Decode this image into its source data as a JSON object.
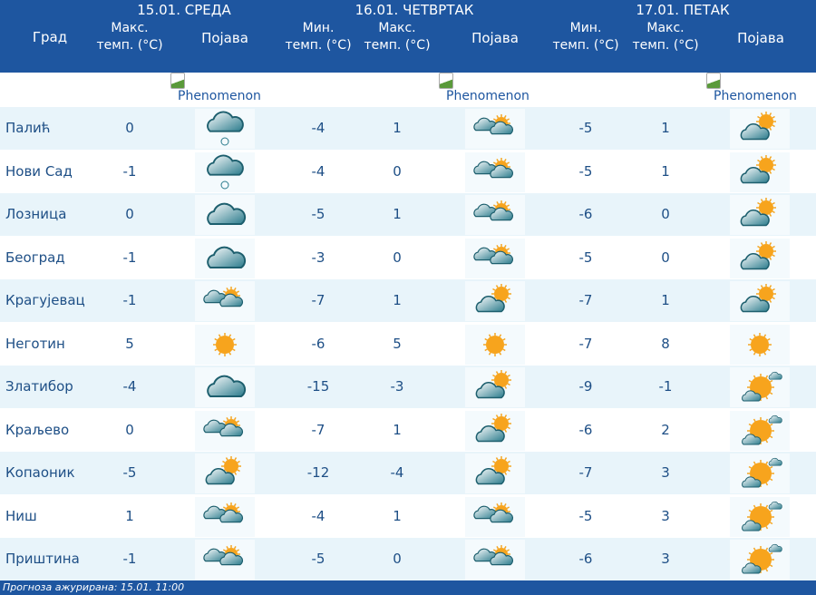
{
  "header": {
    "city_label": "Град",
    "days": [
      {
        "title": "15.01. СРЕДА",
        "cols": [
          "Макс. темп. (°C)",
          "Појава"
        ]
      },
      {
        "title": "16.01. ЧЕТВРТАК",
        "cols": [
          "Мин. темп. (°C)",
          "Макс. темп. (°C)",
          "Појава"
        ]
      },
      {
        "title": "17.01. ПЕТАК",
        "cols": [
          "Мин. темп. (°C)",
          "Макс. темп. (°C)",
          "Појава"
        ]
      }
    ]
  },
  "phenomenon_alt": "Phenomenon",
  "rows": [
    {
      "city": "Палић",
      "d1": [
        "0",
        "cloud-snow-icon"
      ],
      "d2": [
        "-4",
        "1",
        "clouds-sun-icon"
      ],
      "d3": [
        "-5",
        "1",
        "sun-cloud-icon"
      ]
    },
    {
      "city": "Нови Сад",
      "d1": [
        "-1",
        "cloud-snow-icon"
      ],
      "d2": [
        "-4",
        "0",
        "clouds-sun-icon"
      ],
      "d3": [
        "-5",
        "1",
        "sun-cloud-icon"
      ]
    },
    {
      "city": "Лозница",
      "d1": [
        "0",
        "cloud-icon"
      ],
      "d2": [
        "-5",
        "1",
        "clouds-sun-icon"
      ],
      "d3": [
        "-6",
        "0",
        "sun-cloud-icon"
      ]
    },
    {
      "city": "Београд",
      "d1": [
        "-1",
        "cloud-icon"
      ],
      "d2": [
        "-3",
        "0",
        "clouds-sun-icon"
      ],
      "d3": [
        "-5",
        "0",
        "sun-cloud-icon"
      ]
    },
    {
      "city": "Крагујевац",
      "d1": [
        "-1",
        "clouds-sun-icon"
      ],
      "d2": [
        "-7",
        "1",
        "sun-cloud-icon"
      ],
      "d3": [
        "-7",
        "1",
        "sun-cloud-icon"
      ]
    },
    {
      "city": "Неготин",
      "d1": [
        "5",
        "sun-icon"
      ],
      "d2": [
        "-6",
        "5",
        "sun-icon"
      ],
      "d3": [
        "-7",
        "8",
        "sun-icon"
      ]
    },
    {
      "city": "Златибор",
      "d1": [
        "-4",
        "cloud-icon"
      ],
      "d2": [
        "-15",
        "-3",
        "sun-cloud-icon"
      ],
      "d3": [
        "-9",
        "-1",
        "sun-big-cloud-icon"
      ]
    },
    {
      "city": "Краљево",
      "d1": [
        "0",
        "clouds-sun-icon"
      ],
      "d2": [
        "-7",
        "1",
        "sun-cloud-icon"
      ],
      "d3": [
        "-6",
        "2",
        "sun-big-cloud-icon"
      ]
    },
    {
      "city": "Копаоник",
      "d1": [
        "-5",
        "sun-cloud-icon"
      ],
      "d2": [
        "-12",
        "-4",
        "sun-cloud-icon"
      ],
      "d3": [
        "-7",
        "3",
        "sun-big-cloud-icon"
      ]
    },
    {
      "city": "Ниш",
      "d1": [
        "1",
        "clouds-sun-icon"
      ],
      "d2": [
        "-4",
        "1",
        "clouds-sun-icon"
      ],
      "d3": [
        "-5",
        "3",
        "sun-big-cloud-icon"
      ]
    },
    {
      "city": "Приштина",
      "d1": [
        "-1",
        "clouds-sun-icon"
      ],
      "d2": [
        "-5",
        "0",
        "clouds-sun-icon"
      ],
      "d3": [
        "-6",
        "3",
        "sun-big-cloud-icon"
      ]
    }
  ],
  "footer": "Прогноза ажурирана:  15.01. 11:00",
  "colors": {
    "header": "#1e56a0",
    "row_alt": "#e8f4fa",
    "text": "#1e4f86"
  }
}
